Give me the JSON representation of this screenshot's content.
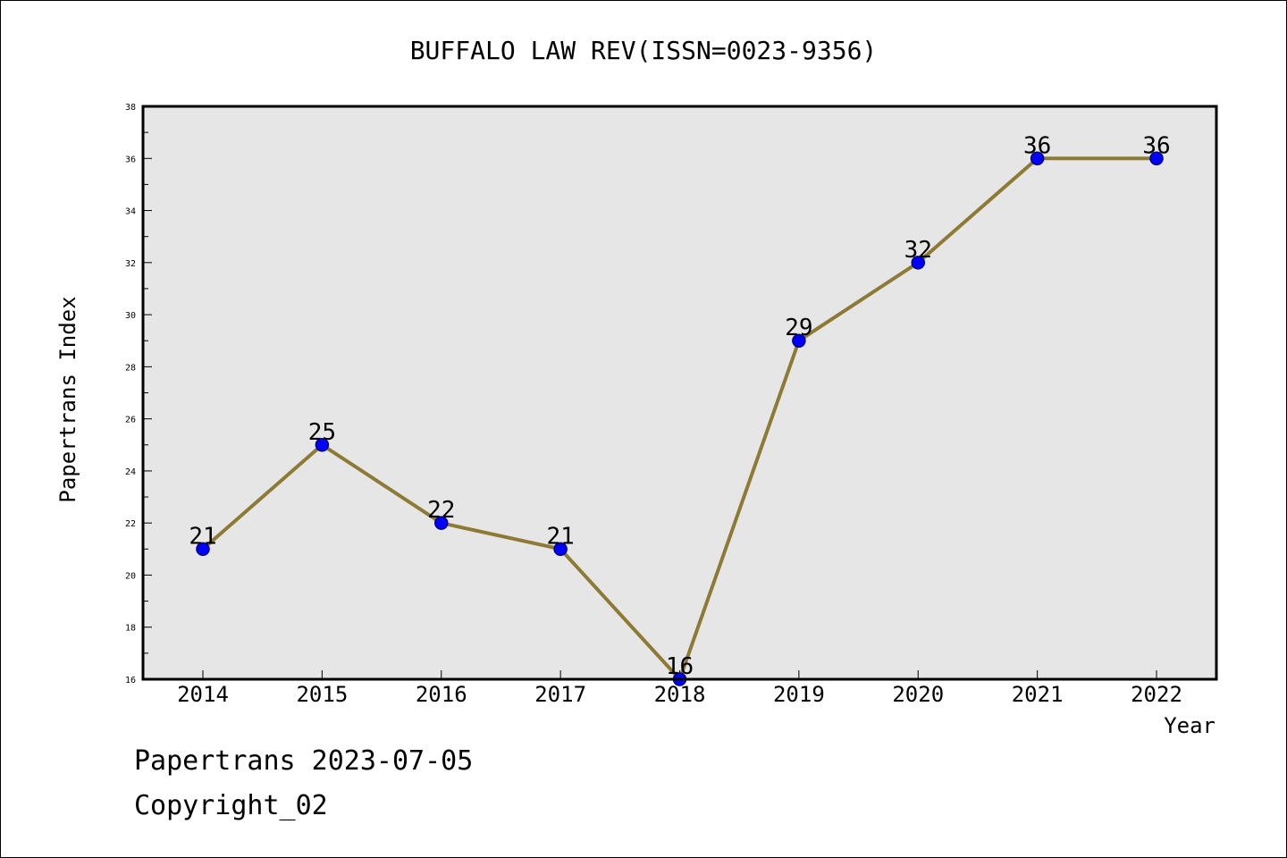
{
  "colors": {
    "background": "#ffffff",
    "plot_background": "#e6e6e6",
    "line": "#8c7a35",
    "marker": "#0000ff",
    "marker_edge": "#000080"
  },
  "chart_data": {
    "type": "line",
    "title": "BUFFALO LAW REV(ISSN=0023-9356)",
    "xlabel": "Year",
    "ylabel": "Papertrans Index",
    "categories": [
      "2014",
      "2015",
      "2016",
      "2017",
      "2018",
      "2019",
      "2020",
      "2021",
      "2022"
    ],
    "series": [
      {
        "values": [
          21,
          25,
          22,
          21,
          16,
          29,
          32,
          36,
          36
        ]
      }
    ],
    "data_labels": [
      "21",
      "25",
      "22",
      "21",
      "16",
      "29",
      "32",
      "36",
      "36"
    ],
    "ylim": [
      16,
      38
    ],
    "yticks": [
      "16",
      "18",
      "20",
      "22",
      "24",
      "26",
      "28",
      "30",
      "32",
      "34",
      "36",
      "38"
    ],
    "grid": false,
    "legend": "none"
  },
  "footer": {
    "line1": "Papertrans 2023-07-05",
    "line2": "Copyright_02"
  }
}
